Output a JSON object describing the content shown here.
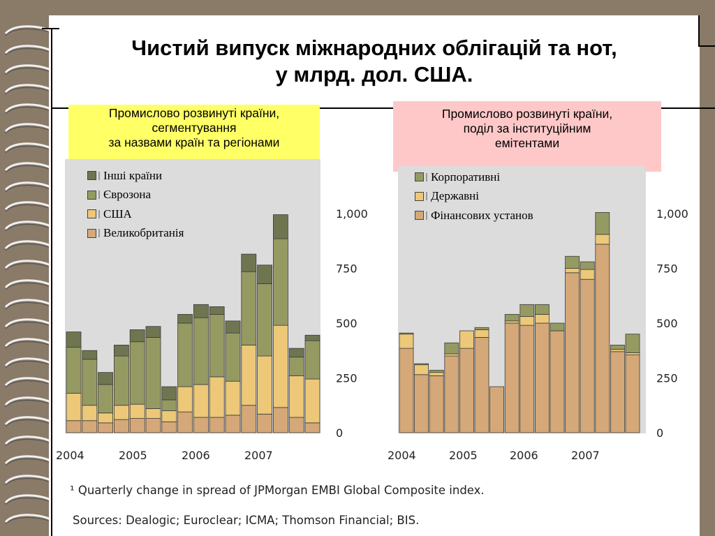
{
  "slide": {
    "title_line1": "Чистий випуск міжнародних облігацій та нот,",
    "title_line2": "у млрд. дол. США.",
    "left_box": {
      "line1": "Промислово розвинуті країни,",
      "line2": "сегментування",
      "line3": "за назвами країн та регіонами"
    },
    "right_box": {
      "line1": "Промислово розвинуті країни,",
      "line2": "поділ за інституційним",
      "line3": "емітентами"
    },
    "footnote": "¹  Quarterly change in spread of JPMorgan EMBI Global Composite index.",
    "sources": "Sources: Dealogic; Euroclear; ICMA; Thomson Financial; BIS."
  },
  "colors": {
    "background": "#8a7a68",
    "plot_bg": "#dcdcdc",
    "left_box": "#ffff66",
    "right_box": "#ffc8c8"
  },
  "chart_data": [
    {
      "type": "bar",
      "stacked": true,
      "ylim": [
        0,
        1000
      ],
      "yticks": [
        "0",
        "250",
        "500",
        "750",
        "1,000"
      ],
      "ytick_values": [
        0,
        250,
        500,
        750,
        1000
      ],
      "x_year_labels": [
        "2004",
        "2005",
        "2006",
        "2007"
      ],
      "categories": [
        "2004 Q1",
        "2004 Q2",
        "2004 Q3",
        "2004 Q4",
        "2005 Q1",
        "2005 Q2",
        "2005 Q3",
        "2005 Q4",
        "2006 Q1",
        "2006 Q2",
        "2006 Q3",
        "2006 Q4",
        "2007 Q1",
        "2007 Q2",
        "2007 Q3",
        "2007 Q4"
      ],
      "legend": [
        "Інші країни",
        "Єврозона",
        "США",
        "Великобританія"
      ],
      "series": [
        {
          "name": "Великобританія",
          "color": "#d4a878",
          "values": [
            55,
            55,
            45,
            60,
            65,
            65,
            50,
            95,
            70,
            70,
            80,
            125,
            85,
            115,
            70,
            45
          ]
        },
        {
          "name": "США",
          "color": "#ecc878",
          "values": [
            125,
            70,
            45,
            65,
            65,
            45,
            50,
            115,
            150,
            185,
            155,
            275,
            265,
            375,
            190,
            200
          ]
        },
        {
          "name": "Єврозона",
          "color": "#959a62",
          "values": [
            210,
            210,
            130,
            225,
            285,
            325,
            50,
            290,
            305,
            285,
            220,
            335,
            330,
            395,
            85,
            175
          ]
        },
        {
          "name": "Інші країни",
          "color": "#6f7550",
          "values": [
            70,
            40,
            55,
            50,
            55,
            50,
            60,
            40,
            60,
            35,
            55,
            80,
            85,
            110,
            40,
            25
          ]
        }
      ]
    },
    {
      "type": "bar",
      "stacked": true,
      "ylim": [
        0,
        1000
      ],
      "yticks": [
        "0",
        "250",
        "500",
        "750",
        "1,000"
      ],
      "ytick_values": [
        0,
        250,
        500,
        750,
        1000
      ],
      "x_year_labels": [
        "2004",
        "2005",
        "2006",
        "2007"
      ],
      "categories": [
        "2004 Q1",
        "2004 Q2",
        "2004 Q3",
        "2004 Q4",
        "2005 Q1",
        "2005 Q2",
        "2005 Q3",
        "2005 Q4",
        "2006 Q1",
        "2006 Q2",
        "2006 Q3",
        "2006 Q4",
        "2007 Q1",
        "2007 Q2",
        "2007 Q3",
        "2007 Q4"
      ],
      "legend": [
        "Корпоративні",
        "Державні",
        "Фінансових установ"
      ],
      "series": [
        {
          "name": "Фінансових установ",
          "color": "#d4a878",
          "values": [
            385,
            265,
            260,
            350,
            385,
            435,
            210,
            500,
            490,
            500,
            465,
            730,
            700,
            860,
            370,
            355
          ]
        },
        {
          "name": "Державні",
          "color": "#ecc878",
          "values": [
            65,
            45,
            15,
            10,
            80,
            35,
            0,
            10,
            40,
            40,
            0,
            20,
            45,
            45,
            10,
            10
          ]
        },
        {
          "name": "Корпоративні",
          "color": "#959a62",
          "values": [
            5,
            5,
            10,
            50,
            0,
            10,
            0,
            30,
            55,
            45,
            35,
            55,
            35,
            100,
            20,
            85
          ]
        }
      ]
    }
  ]
}
